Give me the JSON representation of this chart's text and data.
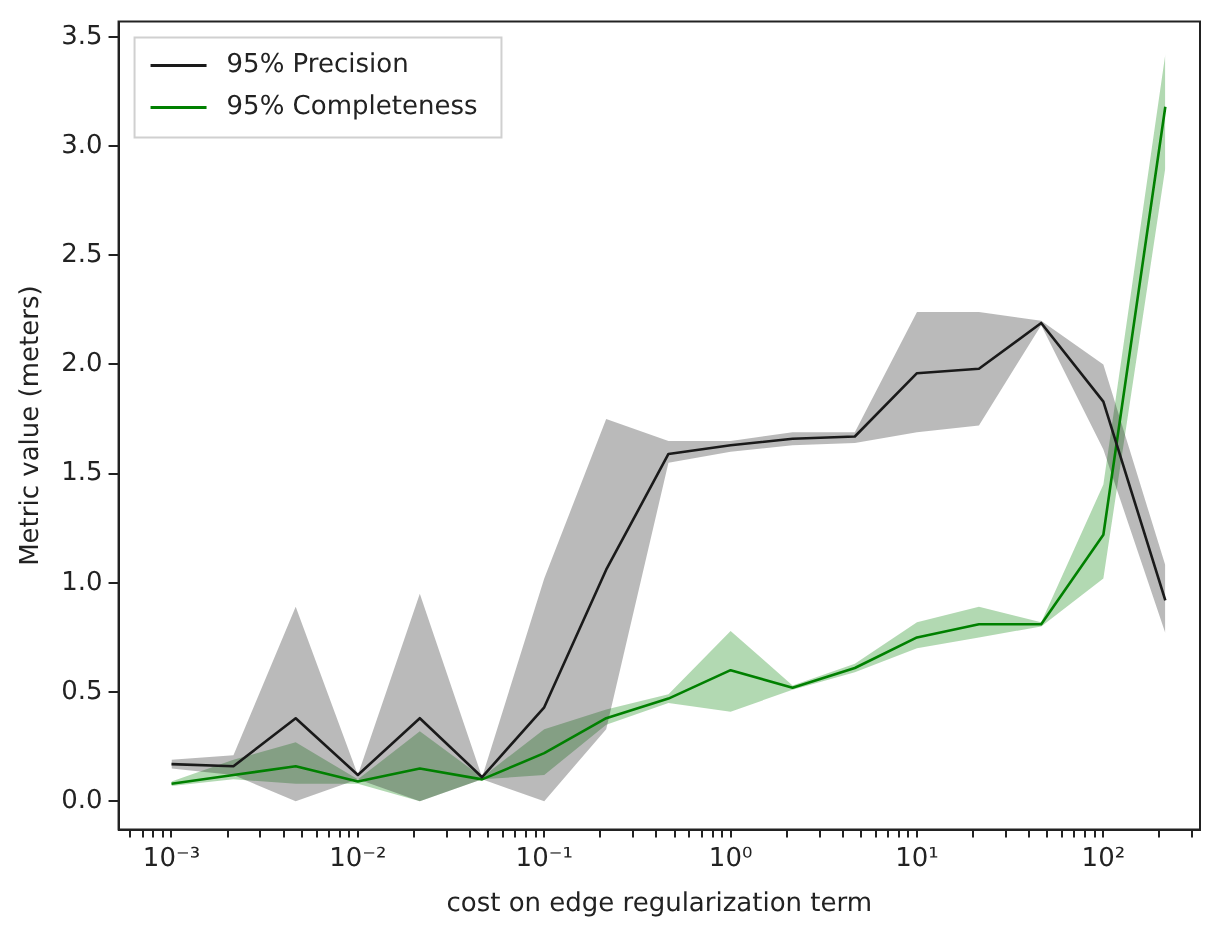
{
  "chart_data": {
    "type": "line",
    "xlabel": "cost on edge regularization term",
    "ylabel": "Metric value (meters)",
    "log": "x",
    "grid": false,
    "legend": "top left",
    "marker": "none",
    "line_style": "solid",
    "x": [
      0.001,
      0.00215,
      0.00464,
      0.01,
      0.0215,
      0.0464,
      0.1,
      0.215,
      0.464,
      1,
      2.15,
      4.64,
      10,
      21.5,
      46.4,
      100,
      215
    ],
    "xlim": [
      0.00052,
      330
    ],
    "ylim": [
      -0.13,
      3.57
    ],
    "xticks": [
      {
        "value": 0.0006,
        "label": null
      },
      {
        "value": 0.0007,
        "label": null
      },
      {
        "value": 0.0008,
        "label": null
      },
      {
        "value": 0.0009,
        "label": null
      },
      {
        "value": 0.001,
        "label": "10⁻³"
      },
      {
        "value": 0.002,
        "label": null
      },
      {
        "value": 0.003,
        "label": null
      },
      {
        "value": 0.004,
        "label": null
      },
      {
        "value": 0.005,
        "label": null
      },
      {
        "value": 0.006,
        "label": null
      },
      {
        "value": 0.007,
        "label": null
      },
      {
        "value": 0.008,
        "label": null
      },
      {
        "value": 0.009,
        "label": null
      },
      {
        "value": 0.01,
        "label": "10⁻²"
      },
      {
        "value": 0.02,
        "label": null
      },
      {
        "value": 0.03,
        "label": null
      },
      {
        "value": 0.04,
        "label": null
      },
      {
        "value": 0.05,
        "label": null
      },
      {
        "value": 0.06,
        "label": null
      },
      {
        "value": 0.07,
        "label": null
      },
      {
        "value": 0.08,
        "label": null
      },
      {
        "value": 0.09,
        "label": null
      },
      {
        "value": 0.1,
        "label": "10⁻¹"
      },
      {
        "value": 0.2,
        "label": null
      },
      {
        "value": 0.3,
        "label": null
      },
      {
        "value": 0.4,
        "label": null
      },
      {
        "value": 0.5,
        "label": null
      },
      {
        "value": 0.6,
        "label": null
      },
      {
        "value": 0.7,
        "label": null
      },
      {
        "value": 0.8,
        "label": null
      },
      {
        "value": 0.9,
        "label": null
      },
      {
        "value": 1,
        "label": "10⁰"
      },
      {
        "value": 2,
        "label": null
      },
      {
        "value": 3,
        "label": null
      },
      {
        "value": 4,
        "label": null
      },
      {
        "value": 5,
        "label": null
      },
      {
        "value": 6,
        "label": null
      },
      {
        "value": 7,
        "label": null
      },
      {
        "value": 8,
        "label": null
      },
      {
        "value": 9,
        "label": null
      },
      {
        "value": 10,
        "label": "10¹"
      },
      {
        "value": 20,
        "label": null
      },
      {
        "value": 30,
        "label": null
      },
      {
        "value": 40,
        "label": null
      },
      {
        "value": 50,
        "label": null
      },
      {
        "value": 60,
        "label": null
      },
      {
        "value": 70,
        "label": null
      },
      {
        "value": 80,
        "label": null
      },
      {
        "value": 90,
        "label": null
      },
      {
        "value": 100,
        "label": "10²"
      },
      {
        "value": 200,
        "label": null
      },
      {
        "value": 300,
        "label": null
      }
    ],
    "yticks": [
      {
        "value": 0,
        "label": "0.0"
      },
      {
        "value": 0.5,
        "label": "0.5"
      },
      {
        "value": 1,
        "label": "1.0"
      },
      {
        "value": 1.5,
        "label": "1.5"
      },
      {
        "value": 2,
        "label": "2.0"
      },
      {
        "value": 2.5,
        "label": "2.5"
      },
      {
        "value": 3,
        "label": "3.0"
      },
      {
        "value": 3.5,
        "label": "3.5"
      }
    ],
    "series": [
      {
        "name": "95% Precision",
        "color": "#1a1a1a",
        "values": [
          0.17,
          0.16,
          0.38,
          0.12,
          0.38,
          0.11,
          0.43,
          1.06,
          1.59,
          1.63,
          1.66,
          1.67,
          1.96,
          1.98,
          2.19,
          1.83,
          0.92
        ],
        "lower": [
          0.15,
          0.12,
          0.0,
          0.1,
          0.0,
          0.1,
          0.0,
          0.33,
          1.55,
          1.6,
          1.63,
          1.64,
          1.69,
          1.72,
          2.18,
          1.61,
          0.77
        ],
        "upper": [
          0.19,
          0.21,
          0.89,
          0.12,
          0.95,
          0.11,
          1.02,
          1.75,
          1.65,
          1.65,
          1.69,
          1.69,
          2.24,
          2.24,
          2.2,
          2.0,
          1.08
        ]
      },
      {
        "name": "95% Completeness",
        "color": "#008000",
        "values": [
          0.08,
          0.12,
          0.16,
          0.09,
          0.15,
          0.1,
          0.22,
          0.38,
          0.47,
          0.6,
          0.52,
          0.61,
          0.75,
          0.81,
          0.81,
          1.22,
          3.18
        ],
        "lower": [
          0.07,
          0.1,
          0.08,
          0.08,
          0.0,
          0.1,
          0.12,
          0.35,
          0.45,
          0.41,
          0.51,
          0.59,
          0.7,
          0.75,
          0.8,
          1.02,
          2.9
        ],
        "upper": [
          0.09,
          0.19,
          0.27,
          0.1,
          0.32,
          0.11,
          0.33,
          0.42,
          0.49,
          0.78,
          0.53,
          0.63,
          0.82,
          0.89,
          0.82,
          1.45,
          3.42
        ]
      }
    ]
  }
}
